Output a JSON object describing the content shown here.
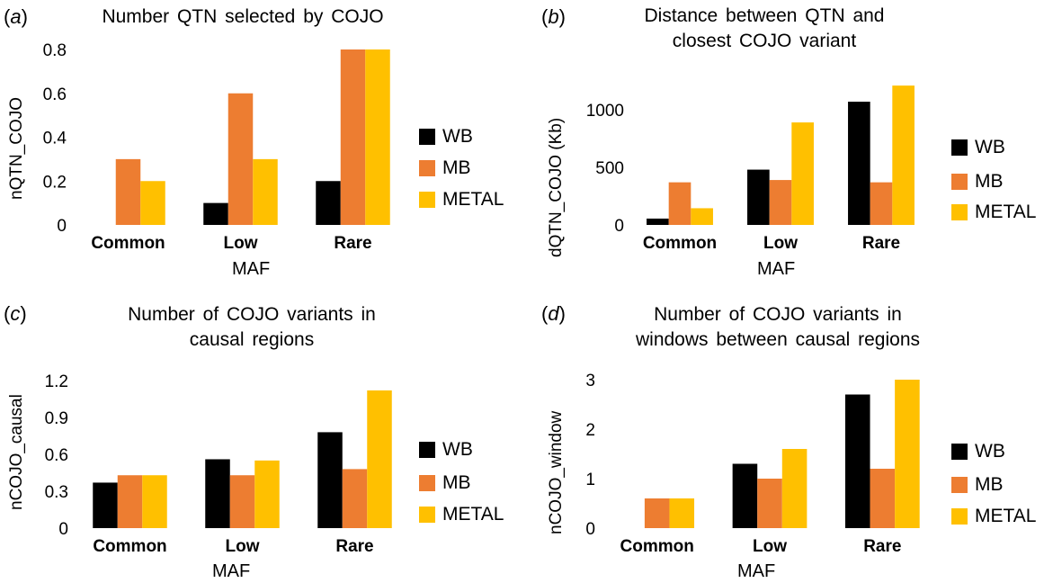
{
  "colors": {
    "WB": "#000000",
    "MB": "#ED7D31",
    "METAL": "#FFC000"
  },
  "chart_data": [
    {
      "type": "bar",
      "tag": "a",
      "title": "Number QTN selected by COJO",
      "xlabel": "MAF",
      "ylabel": "nQTN_COJO",
      "categories": [
        "Common",
        "Low",
        "Rare"
      ],
      "yticks": [
        "0",
        "0.2",
        "0.4",
        "0.6",
        "0.8"
      ],
      "ylim": [
        0,
        0.8
      ],
      "legend": "right",
      "series": [
        {
          "name": "WB",
          "values": [
            0,
            0.1,
            0.2
          ]
        },
        {
          "name": "MB",
          "values": [
            0.3,
            0.6,
            0.8
          ]
        },
        {
          "name": "METAL",
          "values": [
            0.2,
            0.3,
            0.8
          ]
        }
      ]
    },
    {
      "type": "bar",
      "tag": "b",
      "title": "Distance between QTN and closest COJO variant",
      "xlabel": "MAF",
      "ylabel": "dQTN_COJO (Kb)",
      "categories": [
        "Common",
        "Low",
        "Rare"
      ],
      "yticks": [
        "0",
        "500",
        "1000"
      ],
      "ylim": [
        0,
        1250
      ],
      "legend": "right",
      "series": [
        {
          "name": "WB",
          "values": [
            55,
            480,
            1070
          ]
        },
        {
          "name": "MB",
          "values": [
            370,
            390,
            370
          ]
        },
        {
          "name": "METAL",
          "values": [
            145,
            890,
            1210
          ]
        }
      ]
    },
    {
      "type": "bar",
      "tag": "c",
      "title": "Number of COJO variants in causal regions",
      "xlabel": "MAF",
      "ylabel": "nCOJO_causal",
      "categories": [
        "Common",
        "Low",
        "Rare"
      ],
      "yticks": [
        "0",
        "0.3",
        "0.6",
        "0.9",
        "1.2"
      ],
      "ylim": [
        0,
        1.2
      ],
      "legend": "right",
      "series": [
        {
          "name": "WB",
          "values": [
            0.37,
            0.56,
            0.78
          ]
        },
        {
          "name": "MB",
          "values": [
            0.43,
            0.43,
            0.48
          ]
        },
        {
          "name": "METAL",
          "values": [
            0.43,
            0.55,
            1.12
          ]
        }
      ]
    },
    {
      "type": "bar",
      "tag": "d",
      "title": "Number of COJO variants in windows between causal regions",
      "xlabel": "MAF",
      "ylabel": "nCOJO_window",
      "categories": [
        "Common",
        "Low",
        "Rare"
      ],
      "yticks": [
        "0",
        "1",
        "2",
        "3"
      ],
      "ylim": [
        0,
        3
      ],
      "legend": "right",
      "series": [
        {
          "name": "WB",
          "values": [
            0,
            1.3,
            2.7
          ]
        },
        {
          "name": "MB",
          "values": [
            0.6,
            1.0,
            1.2
          ]
        },
        {
          "name": "METAL",
          "values": [
            0.6,
            1.6,
            3.0
          ]
        }
      ]
    }
  ]
}
